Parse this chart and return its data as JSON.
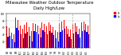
{
  "title": "Milwaukee Weather Outdoor Temperature",
  "subtitle": "Daily High/Low",
  "title_fontsize": 3.8,
  "background_color": "#ffffff",
  "plot_bg_color": "#ffffff",
  "high_color": "#ff0000",
  "low_color": "#0000ff",
  "dashed_line_color": "#aaaaaa",
  "highs": [
    62,
    58,
    45,
    40,
    88,
    82,
    65,
    55,
    68,
    75,
    60,
    48,
    72,
    70,
    65,
    58,
    75,
    70,
    63,
    74,
    67,
    60,
    52,
    47,
    72,
    77,
    82,
    62,
    57,
    53,
    67,
    72,
    62,
    57,
    74,
    77,
    70,
    65
  ],
  "lows": [
    32,
    36,
    26,
    18,
    58,
    52,
    40,
    28,
    42,
    47,
    36,
    20,
    50,
    46,
    40,
    30,
    52,
    46,
    39,
    50,
    44,
    37,
    29,
    20,
    47,
    52,
    57,
    40,
    33,
    27,
    42,
    47,
    40,
    30,
    50,
    52,
    46,
    39
  ],
  "x_labels": [
    "8/2",
    "8/5",
    "8/8",
    "8/11",
    "8/14",
    "8/17",
    "8/20",
    "8/23",
    "8/26",
    "8/29",
    "9/1",
    "9/4",
    "9/7",
    "9/10",
    "9/13",
    "9/16",
    "9/19",
    "9/22",
    "9/25"
  ],
  "ylim": [
    0,
    100
  ],
  "ytick_positions": [
    20,
    40,
    60,
    80,
    100
  ],
  "ytick_labels": [
    "20",
    "40",
    "60",
    "80",
    "100"
  ],
  "dashed_vlines": [
    23.5,
    29.5
  ],
  "legend_high": "Hi",
  "legend_low": "Lo"
}
